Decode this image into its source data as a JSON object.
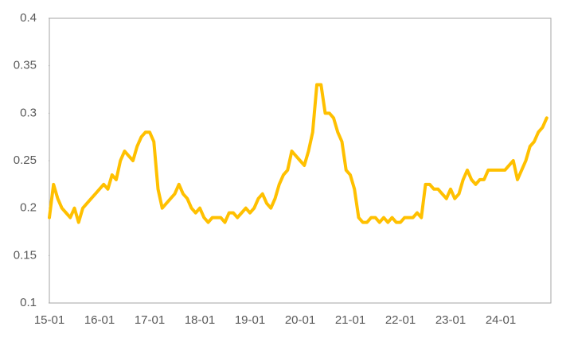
{
  "chart_data": {
    "type": "line",
    "color": "#ffc000",
    "categories": [
      "15-01",
      null,
      null,
      null,
      null,
      null,
      null,
      null,
      null,
      null,
      null,
      null,
      "16-01",
      null,
      null,
      null,
      null,
      null,
      null,
      null,
      null,
      null,
      null,
      null,
      "17-01",
      null,
      null,
      null,
      null,
      null,
      null,
      null,
      null,
      null,
      null,
      null,
      "18-01",
      null,
      null,
      null,
      null,
      null,
      null,
      null,
      null,
      null,
      null,
      null,
      "19-01",
      null,
      null,
      null,
      null,
      null,
      null,
      null,
      null,
      null,
      null,
      null,
      "20-01",
      null,
      null,
      null,
      null,
      null,
      null,
      null,
      null,
      null,
      null,
      null,
      "21-01",
      null,
      null,
      null,
      null,
      null,
      null,
      null,
      null,
      null,
      null,
      null,
      "22-01",
      null,
      null,
      null,
      null,
      null,
      null,
      null,
      null,
      null,
      null,
      null,
      "23-01",
      null,
      null,
      null,
      null,
      null,
      null,
      null,
      null,
      null,
      null,
      null,
      "24-01",
      null,
      null,
      null,
      null,
      null,
      null,
      null,
      null,
      null,
      null,
      null
    ],
    "values": [
      0.19,
      0.225,
      0.21,
      0.2,
      0.195,
      0.19,
      0.2,
      0.185,
      0.2,
      0.205,
      0.21,
      0.215,
      0.22,
      0.225,
      0.22,
      0.235,
      0.23,
      0.25,
      0.26,
      0.255,
      0.25,
      0.265,
      0.275,
      0.28,
      0.28,
      0.27,
      0.22,
      0.2,
      0.205,
      0.21,
      0.215,
      0.225,
      0.215,
      0.21,
      0.2,
      0.195,
      0.2,
      0.19,
      0.185,
      0.19,
      0.19,
      0.19,
      0.185,
      0.195,
      0.195,
      0.19,
      0.195,
      0.2,
      0.195,
      0.2,
      0.21,
      0.215,
      0.205,
      0.2,
      0.21,
      0.225,
      0.235,
      0.24,
      0.26,
      0.255,
      0.25,
      0.245,
      0.26,
      0.28,
      0.33,
      0.33,
      0.3,
      0.3,
      0.295,
      0.28,
      0.27,
      0.24,
      0.235,
      0.22,
      0.19,
      0.185,
      0.185,
      0.19,
      0.19,
      0.185,
      0.19,
      0.185,
      0.19,
      0.185,
      0.185,
      0.19,
      0.19,
      0.19,
      0.195,
      0.19,
      0.225,
      0.225,
      0.22,
      0.22,
      0.215,
      0.21,
      0.22,
      0.21,
      0.215,
      0.23,
      0.24,
      0.23,
      0.225,
      0.23,
      0.23,
      0.24,
      0.24,
      0.24,
      0.24,
      0.24,
      0.245,
      0.25,
      0.23,
      0.24,
      0.25,
      0.265,
      0.27,
      0.28,
      0.285,
      0.295
    ],
    "ylim": [
      0.1,
      0.4
    ],
    "yticks": [
      0.1,
      0.15,
      0.2,
      0.25,
      0.3,
      0.35,
      0.4
    ]
  }
}
